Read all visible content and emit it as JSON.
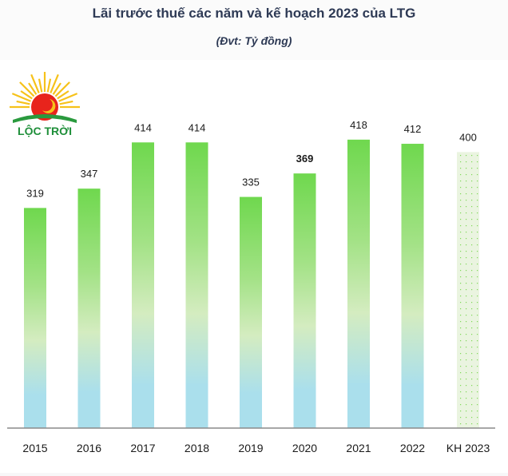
{
  "chart_data": {
    "type": "bar",
    "title": "Lãi trước thuế các năm và kế hoạch 2023 của LTG",
    "subtitle": "(Đvt: Tỷ đồng)",
    "xlabel": "",
    "ylabel": "",
    "categories": [
      "2015",
      "2016",
      "2017",
      "2018",
      "2019",
      "2020",
      "2021",
      "2022",
      "KH 2023"
    ],
    "values": [
      319,
      347,
      414,
      414,
      335,
      369,
      418,
      412,
      400
    ],
    "value_labels": [
      "319",
      "347",
      "414",
      "414",
      "335",
      "369",
      "418",
      "412",
      "400"
    ],
    "bar_styles": [
      "actual",
      "actual",
      "actual",
      "actual",
      "actual",
      "actual",
      "actual",
      "actual",
      "plan"
    ],
    "ylim": [
      0,
      450
    ],
    "grid": false,
    "legend": "none",
    "colors": {
      "actual_top": "#6fd84e",
      "actual_mid": "#d4ecc0",
      "actual_bottom": "#aadfec",
      "plan_fill": "#eaf4e0",
      "plan_dots": "#7ed957",
      "axis": "#8a8a8a",
      "text": "#1a1a1a",
      "title": "#2e3a55"
    }
  },
  "logo": {
    "text": "LỘC TRỜI",
    "colors": {
      "sun": "#e8241c",
      "rays": "#f6c21a",
      "text": "#1f8f3a",
      "moon": "#f6c21a"
    }
  }
}
